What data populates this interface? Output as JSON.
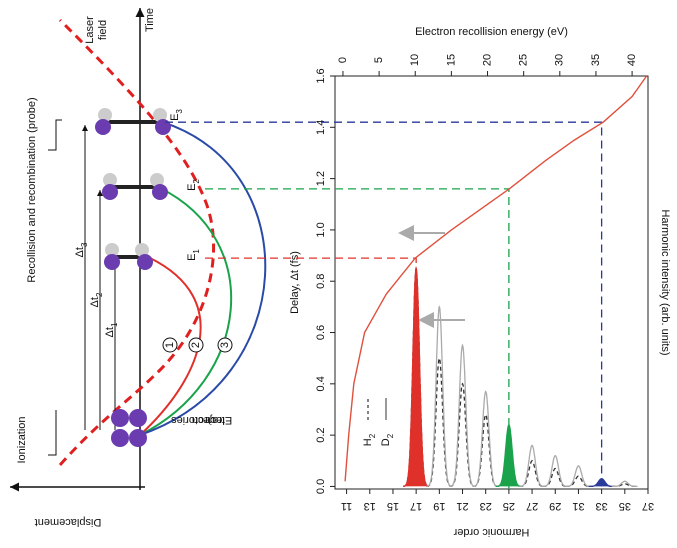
{
  "diagram": {
    "time_label": "Time",
    "laser_label": [
      "Laser",
      "field"
    ],
    "displacement_label": "Displacement",
    "ionization_label": "Ionization",
    "recollision_label": "Recollision and recombination (probe)",
    "delays": [
      {
        "text": "Δt",
        "sub": "1"
      },
      {
        "text": "Δt",
        "sub": "2"
      },
      {
        "text": "Δt",
        "sub": "3"
      }
    ],
    "energies": [
      {
        "text": "E",
        "sub": "1"
      },
      {
        "text": "E",
        "sub": "2"
      },
      {
        "text": "E",
        "sub": "3"
      }
    ],
    "trajectory_label": [
      "Electron",
      "trajectories"
    ],
    "trajectory_numbers": [
      "1",
      "2",
      "3"
    ]
  },
  "chart_data": {
    "type": "line",
    "xlabel": "Electron recollision energy (eV)",
    "ylabel": "Delay, Δt (fs)",
    "xlim": [
      -1.1,
      42.2
    ],
    "xticks": [
      0,
      5,
      10,
      15,
      20,
      25,
      30,
      35,
      40
    ],
    "ylim": [
      -0.01,
      1.6
    ],
    "yticks": [
      {
        "value": 0,
        "label": "0.0"
      },
      0.2,
      0.4,
      0.6,
      0.8,
      {
        "value": 1,
        "label": "1.0"
      },
      1.2,
      1.4,
      1.6
    ],
    "x": [
      0.3,
      0.8,
      1.5,
      3,
      6,
      10,
      15,
      20,
      23,
      28,
      32,
      36,
      40,
      42
    ],
    "series": [
      {
        "color": "#e0503c",
        "values": [
          0.02,
          0.2,
          0.4,
          0.6,
          0.75,
          0.89,
          1.0,
          1.1,
          1.16,
          1.27,
          1.35,
          1.42,
          1.52,
          1.6
        ]
      }
    ],
    "x2label": "Harmonic order",
    "x2lim": [
      10,
      37
    ],
    "x2ticks": [
      11,
      13,
      15,
      17,
      19,
      21,
      23,
      25,
      27,
      29,
      31,
      33,
      35,
      37
    ],
    "y2label": "Harmonic intensity (arb. units)",
    "harmonics": [
      17,
      19,
      21,
      23,
      25,
      27,
      29,
      31,
      33,
      35
    ],
    "spectra": [
      {
        "name": {
          "text": "H",
          "sub": "2"
        },
        "color": "#333",
        "dash": true,
        "values": [
          0.85,
          0.5,
          0.4,
          0.28,
          0.2,
          0.1,
          0.07,
          0.04,
          0.02,
          0.01
        ]
      },
      {
        "name": {
          "text": "D",
          "sub": "2"
        },
        "color": "#aaa",
        "dash": false,
        "values": [
          0.85,
          0.7,
          0.55,
          0.37,
          0.24,
          0.16,
          0.12,
          0.08,
          0.03,
          0.02
        ]
      }
    ],
    "highlights": [
      {
        "harmonic": 17,
        "delay": 0.89,
        "color": "#e0302a"
      },
      {
        "harmonic": 25,
        "delay": 1.16,
        "color": "#1aa34a"
      },
      {
        "harmonic": 33,
        "delay": 1.42,
        "color": "#2a3a9a"
      }
    ]
  }
}
